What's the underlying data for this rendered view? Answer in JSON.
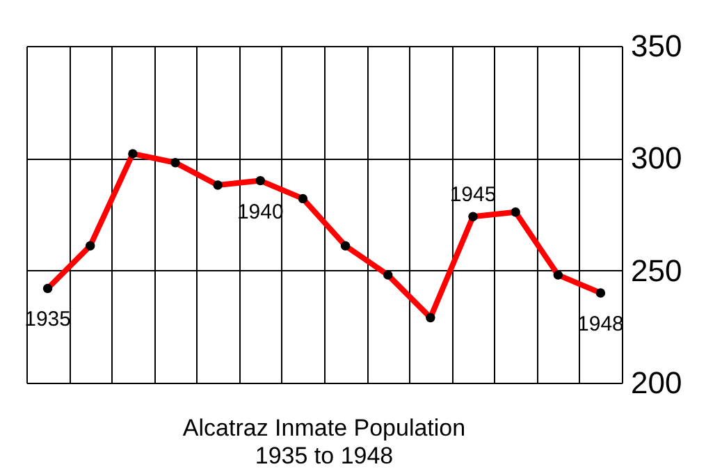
{
  "chart_data": {
    "type": "line",
    "title": "Alcatraz Inmate Population\n1935 to 1948",
    "categories": [
      null,
      null,
      null,
      null,
      null,
      null,
      null,
      null,
      null,
      null,
      null,
      null,
      null,
      null
    ],
    "series": [
      {
        "color": "#ff0000",
        "values": [
          242,
          261,
          302,
          298,
          288,
          290,
          282,
          261,
          248,
          229,
          274,
          276,
          248,
          240
        ]
      }
    ],
    "ylim": [
      200,
      350
    ],
    "yticks": [
      200,
      250,
      300,
      350
    ],
    "tick_labels": "y",
    "grid": true,
    "marker": "circle",
    "line_style": "solid",
    "annotations": [
      {
        "text": "1935",
        "y": 242
      },
      {
        "text": "1940",
        "y": 290
      },
      {
        "text": "1945",
        "y": 274
      },
      {
        "text": "1948",
        "y": 240
      }
    ]
  }
}
